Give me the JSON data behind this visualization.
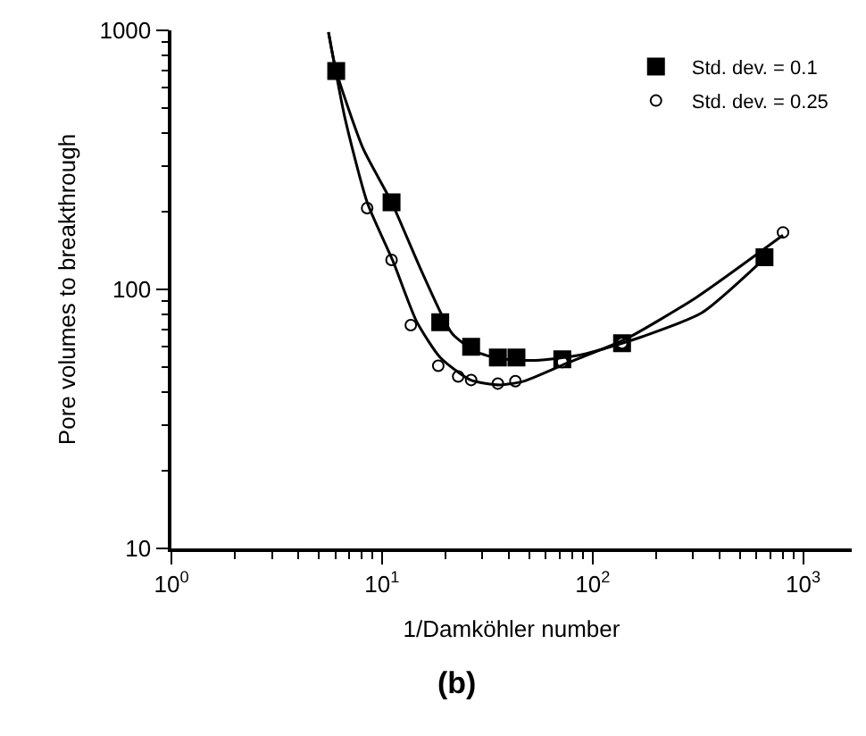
{
  "chart_data": {
    "type": "scatter",
    "xlabel": "1/Damköhler number",
    "ylabel": "Pore volumes to breakthrough",
    "annotations": [
      "(b)"
    ],
    "log": "xy",
    "grid": false,
    "legend": "top right",
    "xlim": [
      1,
      1700
    ],
    "xticks": [
      {
        "value": 1,
        "label": "10$^{0}$"
      },
      {
        "value": 10,
        "label": "10$^{1}$"
      },
      {
        "value": 100,
        "label": "10$^{2}$"
      },
      {
        "value": 1000,
        "label": "10$^{3}$"
      }
    ],
    "ylim": [
      10,
      1000
    ],
    "yticks": [
      10,
      100,
      1000
    ],
    "series": [
      {
        "name": "Std. dev. = 0.1",
        "color": "#000000",
        "marker": "square",
        "x": [
          6.06,
          11.1,
          18.9,
          26.5,
          35.5,
          43.5,
          71.8,
          138,
          655
        ],
        "values": [
          697,
          217,
          74.7,
          60,
          54.6,
          54.6,
          53.7,
          62,
          133
        ]
      },
      {
        "name": "Std. dev. = 0.25",
        "color": "#000000",
        "marker": "circle",
        "x": [
          8.5,
          11.1,
          13.7,
          18.5,
          23,
          26.5,
          35.5,
          43,
          71.8,
          138,
          802
        ],
        "values": [
          206,
          130,
          72.8,
          50.7,
          46.1,
          44.7,
          43.3,
          44.2,
          52.4,
          62,
          166
        ]
      },
      {
        "type": "line",
        "color": "#000000",
        "x": [
          5.57,
          6.06,
          8.13,
          11.1,
          15.6,
          21.5,
          27.9,
          35.9,
          53.6,
          90,
          173,
          331,
          677
        ],
        "values": [
          985,
          697,
          350,
          217,
          115,
          67.6,
          57.5,
          54.1,
          53.2,
          56.1,
          65.8,
          81.3,
          135
        ]
      },
      {
        "type": "line",
        "color": "#000000",
        "x": [
          5.57,
          6.68,
          8.5,
          11.3,
          14.6,
          18.9,
          26.3,
          36.3,
          47,
          75,
          142,
          310,
          802
        ],
        "values": [
          985,
          456,
          217,
          128,
          75.2,
          54.6,
          44.7,
          42.8,
          44.2,
          51.8,
          64,
          93,
          162
        ]
      }
    ]
  }
}
